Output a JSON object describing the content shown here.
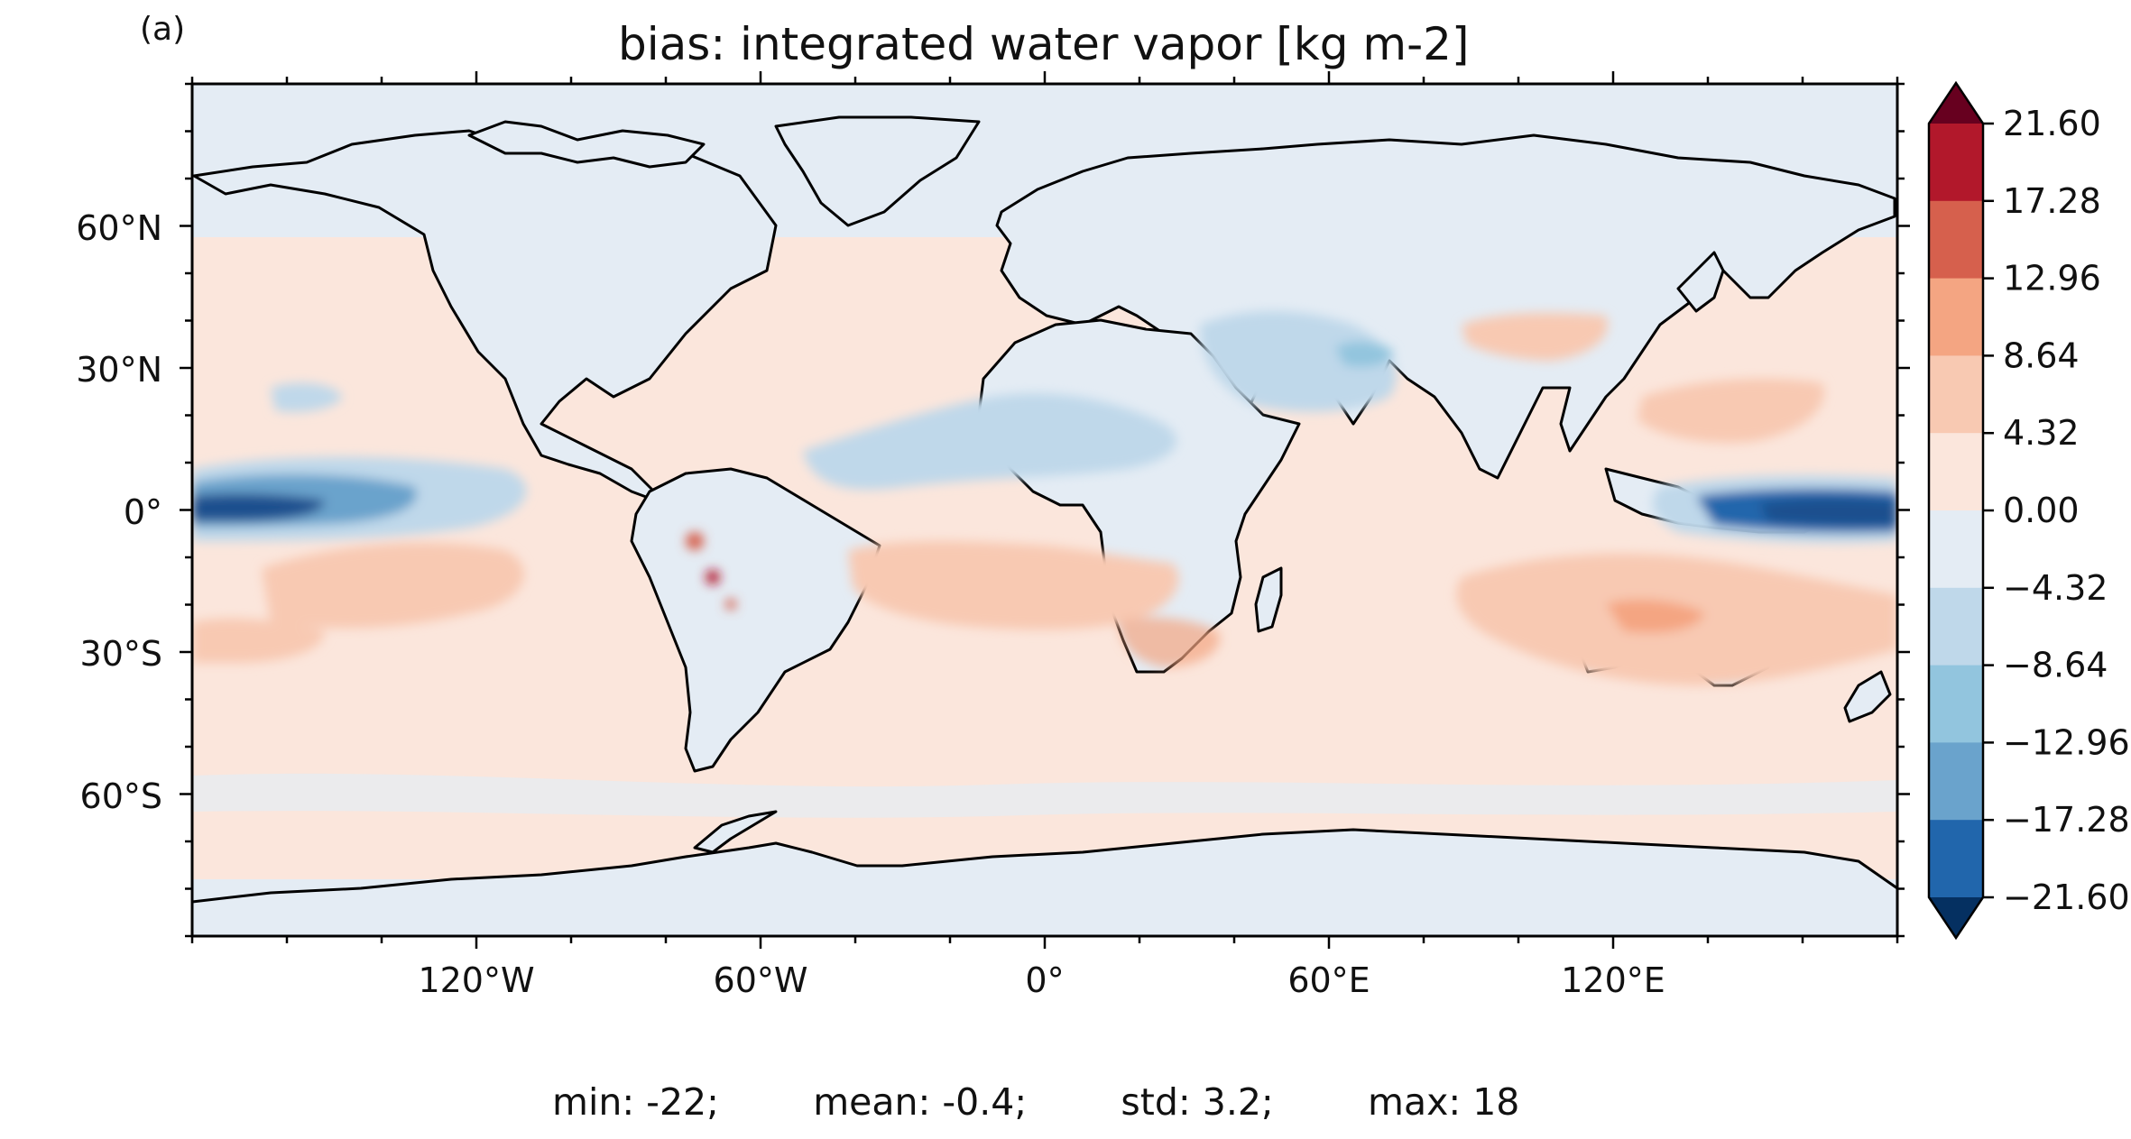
{
  "panel_label": "(a)",
  "title": "bias: integrated water vapor [kg m-2]",
  "axes": {
    "lat_ticks": [
      "60°N",
      "30°N",
      "0°",
      "30°S",
      "60°S"
    ],
    "lon_ticks": [
      "120°W",
      "60°W",
      "0°",
      "60°E",
      "120°E"
    ]
  },
  "colorbar": {
    "levels": [
      "21.60",
      "17.28",
      "12.96",
      "8.64",
      "4.32",
      "0.00",
      "−4.32",
      "−8.64",
      "−12.96",
      "−17.28",
      "−21.60"
    ],
    "colors": [
      "#67001f",
      "#b2182b",
      "#d6604d",
      "#f4a582",
      "#f8c9b2",
      "#fbe6dc",
      "#e4ecf4",
      "#bfd8ea",
      "#92c5de",
      "#6aa3cc",
      "#2166ac",
      "#1e4f8e",
      "#053061"
    ],
    "extend": "both"
  },
  "stats": {
    "min": "min: -22;",
    "mean": "mean: -0.4;",
    "std": "std: 3.2;",
    "max": "max: 18"
  },
  "map": {
    "projection": "PlateCarree",
    "lon_range": [
      -180,
      180
    ],
    "lat_range": [
      -90,
      90
    ],
    "ocean_base_color": "#fbe6dc",
    "land_base_color": "#e4ecf4",
    "coastline_color": "#000000"
  }
}
